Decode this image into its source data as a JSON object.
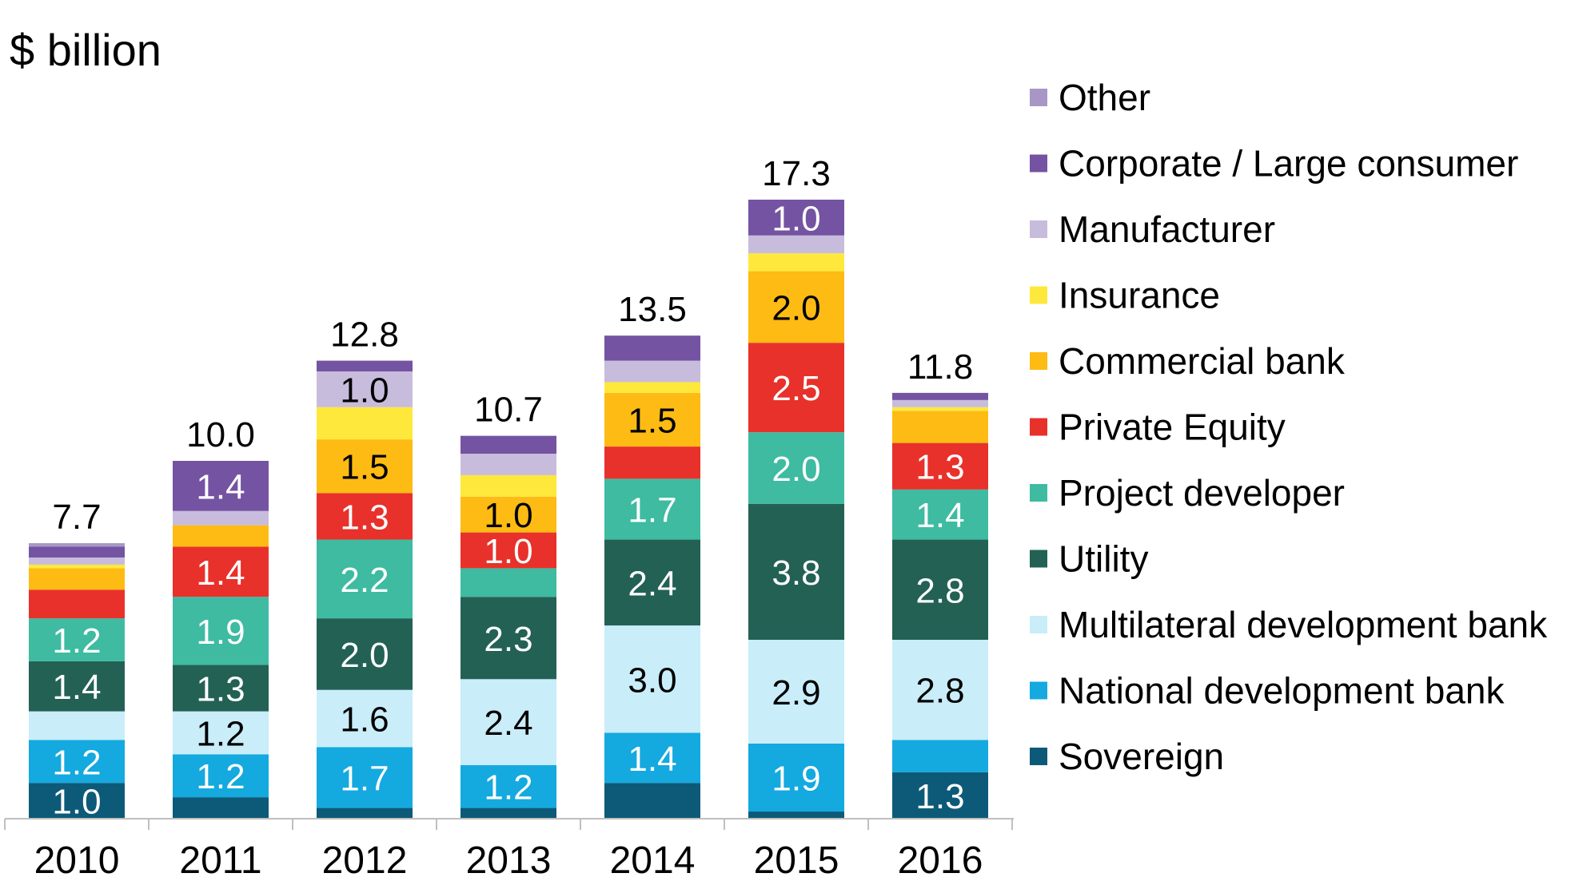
{
  "chart_data": {
    "type": "bar",
    "stacked": true,
    "unit_label": "$ billion",
    "categories": [
      "2010",
      "2011",
      "2012",
      "2013",
      "2014",
      "2015",
      "2016"
    ],
    "totals": [
      "7.7",
      "10.0",
      "12.8",
      "10.7",
      "13.5",
      "17.3",
      "11.8"
    ],
    "ylim": [
      0,
      17.3
    ],
    "grid": false,
    "legend_position": "right",
    "series": [
      {
        "name": "Sovereign",
        "color": "#0D5A78",
        "values": [
          1.0,
          0.6,
          0.3,
          0.3,
          1.0,
          0.2,
          1.3
        ],
        "labels": [
          "1.0",
          "",
          "",
          "",
          "",
          "",
          "1.3"
        ]
      },
      {
        "name": "National development bank",
        "color": "#14A9DF",
        "values": [
          1.2,
          1.2,
          1.7,
          1.2,
          1.4,
          1.9,
          0.9
        ],
        "labels": [
          "1.2",
          "1.2",
          "1.7",
          "1.2",
          "1.4",
          "1.9",
          ""
        ]
      },
      {
        "name": "Multilateral development bank",
        "color": "#C9EDF9",
        "values": [
          0.8,
          1.2,
          1.6,
          2.4,
          3.0,
          2.9,
          2.8
        ],
        "labels": [
          "",
          "1.2",
          "1.6",
          "2.4",
          "3.0",
          "2.9",
          "2.8"
        ]
      },
      {
        "name": "Utility",
        "color": "#236155",
        "values": [
          1.4,
          1.3,
          2.0,
          2.3,
          2.4,
          3.8,
          2.8
        ],
        "labels": [
          "1.4",
          "1.3",
          "2.0",
          "2.3",
          "2.4",
          "3.8",
          "2.8"
        ]
      },
      {
        "name": "Project developer",
        "color": "#3EBBA1",
        "values": [
          1.2,
          1.9,
          2.2,
          0.8,
          1.7,
          2.0,
          1.4
        ],
        "labels": [
          "1.2",
          "1.9",
          "2.2",
          "",
          "1.7",
          "2.0",
          "1.4"
        ]
      },
      {
        "name": "Private Equity",
        "color": "#E8312A",
        "values": [
          0.8,
          1.4,
          1.3,
          1.0,
          0.9,
          2.5,
          1.3
        ],
        "labels": [
          "",
          "1.4",
          "1.3",
          "1.0",
          "",
          "2.5",
          "1.3"
        ]
      },
      {
        "name": "Commercial bank",
        "color": "#FDBB13",
        "values": [
          0.6,
          0.6,
          1.5,
          1.0,
          1.5,
          2.0,
          0.9
        ],
        "labels": [
          "",
          "",
          "1.5",
          "1.0",
          "1.5",
          "2.0",
          ""
        ]
      },
      {
        "name": "Insurance",
        "color": "#FFE83C",
        "values": [
          0.1,
          0.0,
          0.9,
          0.6,
          0.3,
          0.5,
          0.1
        ],
        "labels": [
          "",
          "",
          "",
          "",
          "",
          "",
          ""
        ]
      },
      {
        "name": "Manufacturer",
        "color": "#C8BCDC",
        "values": [
          0.2,
          0.4,
          1.0,
          0.6,
          0.6,
          0.5,
          0.2
        ],
        "labels": [
          "",
          "",
          "1.0",
          "",
          "",
          "",
          ""
        ]
      },
      {
        "name": "Corporate / Large consumer",
        "color": "#7453A2",
        "values": [
          0.3,
          1.4,
          0.3,
          0.5,
          0.7,
          1.0,
          0.2
        ],
        "labels": [
          "",
          "1.4",
          "",
          "",
          "",
          "1.0",
          ""
        ]
      },
      {
        "name": "Other",
        "color": "#A897C6",
        "values": [
          0.1,
          0.0,
          0.0,
          0.0,
          0.0,
          0.0,
          0.0
        ],
        "labels": [
          "",
          "",
          "",
          "",
          "",
          "",
          ""
        ]
      }
    ]
  }
}
